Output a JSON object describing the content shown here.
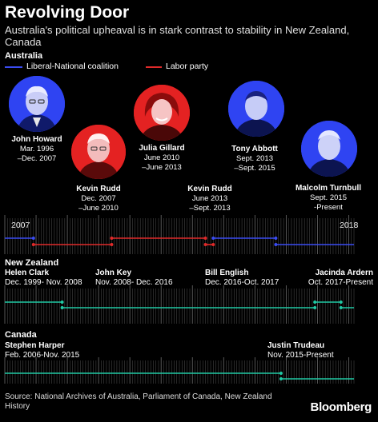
{
  "title": "Revolving Door",
  "subtitle": "Australia's political upheaval is in stark contrast to stability in New Zealand, Canada",
  "colors": {
    "coalition": "#3a4cf2",
    "labor": "#e02a2a",
    "teal": "#20c9a4",
    "tick": "#6b6b6b"
  },
  "australia": {
    "label": "Australia",
    "legend": {
      "coalition": "Liberal-National coalition",
      "labor": "Labor party"
    },
    "pms": [
      {
        "name": "John Howard",
        "line1": "Mar. 1996",
        "line2": "–Dec. 2007",
        "party": "coalition"
      },
      {
        "name": "Kevin Rudd",
        "line1": "Dec. 2007",
        "line2": "–June 2010",
        "party": "labor"
      },
      {
        "name": "Julia Gillard",
        "line1": "June 2010",
        "line2": "–June 2013",
        "party": "labor"
      },
      {
        "name": "Kevin Rudd",
        "line1": "June 2013",
        "line2": "–Sept. 2013",
        "party": "labor"
      },
      {
        "name": "Tony Abbott",
        "line1": "Sept. 2013",
        "line2": "–Sept. 2015",
        "party": "coalition"
      },
      {
        "name": "Malcolm Turnbull",
        "line1": "Sept. 2015",
        "line2": "-Present",
        "party": "coalition"
      }
    ]
  },
  "new_zealand": {
    "label": "New Zealand",
    "pms": [
      {
        "name": "Helen Clark",
        "term": "Dec. 1999- Nov. 2008"
      },
      {
        "name": "John Key",
        "term": "Nov. 2008- Dec. 2016"
      },
      {
        "name": "Bill English",
        "term": "Dec. 2016-Oct. 2017"
      },
      {
        "name": "Jacinda Ardern",
        "term": "Oct. 2017-Present"
      }
    ]
  },
  "canada": {
    "label": "Canada",
    "pms": [
      {
        "name": "Stephen Harper",
        "term": "Feb. 2006-Nov. 2015"
      },
      {
        "name": "Justin Trudeau",
        "term": "Nov. 2015-Present"
      }
    ]
  },
  "axis": {
    "start_label": "2007",
    "end_label": "2018"
  },
  "source": "Source: National Archives of Australia, Parliament of Canada, New Zealand History",
  "brand": "Bloomberg",
  "chart_data": {
    "type": "timeline",
    "x_range": [
      "2007-01",
      "2018-03"
    ],
    "x_tick_labels": [
      "2007",
      "2018"
    ],
    "series": [
      {
        "country": "Australia",
        "segments": [
          {
            "leader": "John Howard",
            "party": "Liberal-National coalition",
            "start": "2007-01",
            "end": "2007-12"
          },
          {
            "leader": "Kevin Rudd",
            "party": "Labor party",
            "start": "2007-12",
            "end": "2010-06"
          },
          {
            "leader": "Julia Gillard",
            "party": "Labor party",
            "start": "2010-06",
            "end": "2013-06"
          },
          {
            "leader": "Kevin Rudd",
            "party": "Labor party",
            "start": "2013-06",
            "end": "2013-09"
          },
          {
            "leader": "Tony Abbott",
            "party": "Liberal-National coalition",
            "start": "2013-09",
            "end": "2015-09"
          },
          {
            "leader": "Malcolm Turnbull",
            "party": "Liberal-National coalition",
            "start": "2015-09",
            "end": "2018-03"
          }
        ]
      },
      {
        "country": "New Zealand",
        "segments": [
          {
            "leader": "Helen Clark",
            "start": "2007-01",
            "end": "2008-11"
          },
          {
            "leader": "John Key",
            "start": "2008-11",
            "end": "2016-12"
          },
          {
            "leader": "Bill English",
            "start": "2016-12",
            "end": "2017-10"
          },
          {
            "leader": "Jacinda Ardern",
            "start": "2017-10",
            "end": "2018-03"
          }
        ]
      },
      {
        "country": "Canada",
        "segments": [
          {
            "leader": "Stephen Harper",
            "start": "2007-01",
            "end": "2015-11"
          },
          {
            "leader": "Justin Trudeau",
            "start": "2015-11",
            "end": "2018-03"
          }
        ]
      }
    ]
  }
}
